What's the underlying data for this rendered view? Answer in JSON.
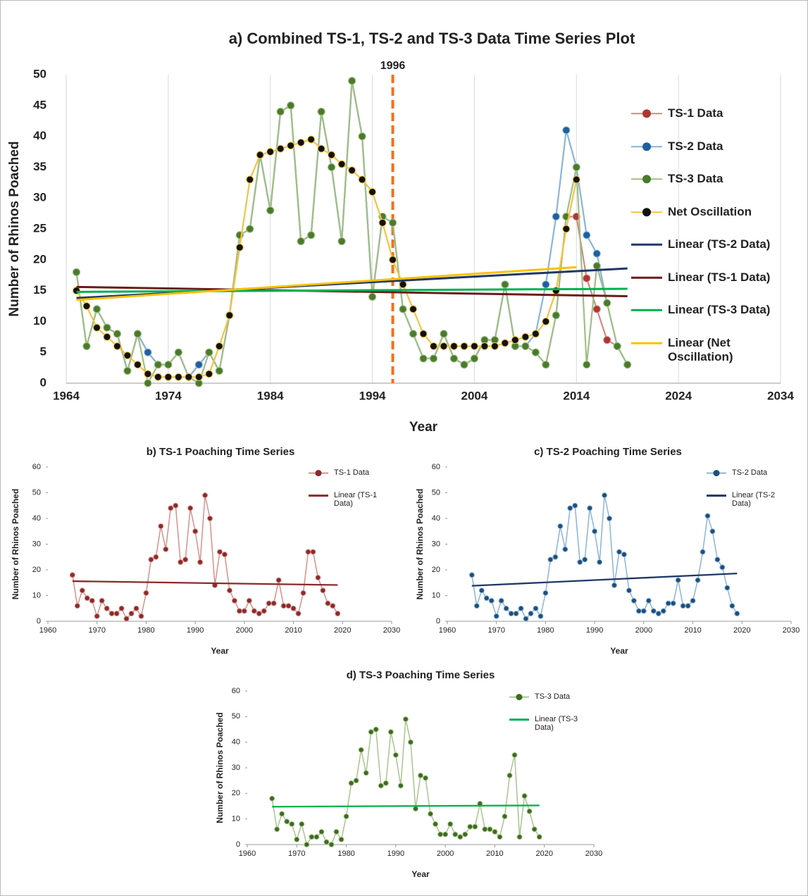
{
  "chart_data": [
    {
      "type": "line",
      "title": "a) Combined TS-1, TS-2 and TS-3 Data Time Series Plot",
      "x_label": "Year",
      "y_label": "Number of Rhinos Poached",
      "x": [
        1965,
        1966,
        1967,
        1968,
        1969,
        1970,
        1971,
        1972,
        1973,
        1974,
        1975,
        1976,
        1977,
        1978,
        1979,
        1980,
        1981,
        1982,
        1983,
        1984,
        1985,
        1986,
        1987,
        1988,
        1989,
        1990,
        1991,
        1992,
        1993,
        1994,
        1995,
        1996,
        1997,
        1998,
        1999,
        2000,
        2001,
        2002,
        2003,
        2004,
        2005,
        2006,
        2007,
        2008,
        2009,
        2010,
        2011,
        2012,
        2013,
        2014,
        2015,
        2016,
        2017,
        2018,
        2019
      ],
      "xlim": [
        1964,
        2034
      ],
      "xticks": [
        1964,
        1974,
        1984,
        1994,
        2004,
        2014,
        2024,
        2034
      ],
      "ylim": [
        0,
        50
      ],
      "yticks": [
        0,
        5,
        10,
        15,
        20,
        25,
        30,
        35,
        40,
        45,
        50
      ],
      "grid": true,
      "vline": 1996,
      "series": [
        {
          "name": "TS-1 Data",
          "color": "#b0352f",
          "line_color": "#d08a85",
          "values": [
            18,
            6,
            12,
            9,
            8,
            2,
            8,
            5,
            3,
            3,
            5,
            1,
            3,
            5,
            2,
            11,
            24,
            25,
            37,
            28,
            44,
            45,
            23,
            24,
            44,
            35,
            23,
            49,
            40,
            14,
            27,
            26,
            12,
            8,
            4,
            4,
            8,
            4,
            3,
            4,
            7,
            7,
            16,
            6,
            6,
            5,
            3,
            11,
            27,
            27,
            17,
            12,
            7,
            6,
            3
          ]
        },
        {
          "name": "TS-2 Data",
          "color": "#1f5f9e",
          "line_color": "#8ab4d9",
          "values": [
            18,
            6,
            12,
            9,
            8,
            2,
            8,
            5,
            3,
            3,
            5,
            1,
            3,
            5,
            2,
            11,
            24,
            25,
            37,
            28,
            44,
            45,
            23,
            24,
            44,
            35,
            23,
            49,
            40,
            14,
            27,
            26,
            12,
            8,
            4,
            4,
            8,
            4,
            3,
            4,
            7,
            7,
            16,
            6,
            6,
            8,
            16,
            27,
            41,
            35,
            24,
            21,
            13,
            6,
            3
          ]
        },
        {
          "name": "TS-3 Data",
          "color": "#4a7a2a",
          "line_color": "#9fbf86",
          "values": [
            18,
            6,
            12,
            9,
            8,
            2,
            8,
            0,
            3,
            3,
            5,
            1,
            0,
            5,
            2,
            11,
            24,
            25,
            37,
            28,
            44,
            45,
            23,
            24,
            44,
            35,
            23,
            49,
            40,
            14,
            27,
            26,
            12,
            8,
            4,
            4,
            8,
            4,
            3,
            4,
            7,
            7,
            16,
            6,
            6,
            5,
            3,
            11,
            27,
            35,
            3,
            19,
            13,
            6,
            3
          ]
        },
        {
          "name": "Net Oscillation",
          "color": "#111111",
          "line_color": "#f5c242",
          "values": [
            15,
            12.5,
            9,
            7.5,
            6,
            4.5,
            3,
            1.5,
            1,
            1,
            1,
            1,
            1,
            1.5,
            6,
            11,
            22,
            33,
            37,
            37.5,
            38,
            38.5,
            39,
            39.5,
            38,
            37,
            35.5,
            34.5,
            33,
            31,
            26,
            20,
            16,
            12,
            8,
            6,
            6,
            6,
            6,
            6,
            6,
            6,
            6.5,
            7,
            7.5,
            8,
            10,
            15,
            25,
            33,
            null,
            null,
            null,
            null,
            null
          ]
        },
        {
          "name": "Linear (TS-2 Data)",
          "line_color": "#1f3864",
          "x": [
            1965,
            2019
          ],
          "values": [
            13.8,
            18.6
          ]
        },
        {
          "name": "Linear (TS-1 Data)",
          "line_color": "#6b1b1b",
          "x": [
            1965,
            2019
          ],
          "values": [
            15.6,
            14.1
          ]
        },
        {
          "name": "Linear (TS-3 Data)",
          "line_color": "#00b050",
          "x": [
            1965,
            2019
          ],
          "values": [
            14.8,
            15.3
          ]
        },
        {
          "name": "Linear (Net Oscillation)",
          "line_color": "#ffc000",
          "x": [
            1965,
            2014
          ],
          "values": [
            13.5,
            18.8
          ]
        }
      ]
    },
    {
      "type": "line",
      "title": "b) TS-1 Poaching Time Series",
      "x_label": "Year",
      "y_label": "Number of Rhinos Poached",
      "x": [
        1965,
        1966,
        1967,
        1968,
        1969,
        1970,
        1971,
        1972,
        1973,
        1974,
        1975,
        1976,
        1977,
        1978,
        1979,
        1980,
        1981,
        1982,
        1983,
        1984,
        1985,
        1986,
        1987,
        1988,
        1989,
        1990,
        1991,
        1992,
        1993,
        1994,
        1995,
        1996,
        1997,
        1998,
        1999,
        2000,
        2001,
        2002,
        2003,
        2004,
        2005,
        2006,
        2007,
        2008,
        2009,
        2010,
        2011,
        2012,
        2013,
        2014,
        2015,
        2016,
        2017,
        2018,
        2019
      ],
      "xlim": [
        1960,
        2030
      ],
      "xticks": [
        1960,
        1970,
        1980,
        1990,
        2000,
        2010,
        2020,
        2030
      ],
      "ylim": [
        0,
        60
      ],
      "yticks": [
        0,
        10,
        20,
        30,
        40,
        50,
        60
      ],
      "grid": false,
      "series": [
        {
          "name": "TS-1 Data",
          "color": "#8b2a2a",
          "line_color": "#d4918c",
          "values": [
            18,
            6,
            12,
            9,
            8,
            2,
            8,
            5,
            3,
            3,
            5,
            1,
            3,
            5,
            2,
            11,
            24,
            25,
            37,
            28,
            44,
            45,
            23,
            24,
            44,
            35,
            23,
            49,
            40,
            14,
            27,
            26,
            12,
            8,
            4,
            4,
            8,
            4,
            3,
            4,
            7,
            7,
            16,
            6,
            6,
            5,
            3,
            11,
            27,
            27,
            17,
            12,
            7,
            6,
            3
          ]
        },
        {
          "name": "Linear (TS-1 Data)",
          "line_color": "#8b2a2a",
          "x": [
            1965,
            2019
          ],
          "values": [
            15.6,
            14.1
          ]
        }
      ]
    },
    {
      "type": "line",
      "title": "c) TS-2 Poaching Time Series",
      "x_label": "Year",
      "y_label": "Number of Rhinos Poached",
      "x": [
        1965,
        1966,
        1967,
        1968,
        1969,
        1970,
        1971,
        1972,
        1973,
        1974,
        1975,
        1976,
        1977,
        1978,
        1979,
        1980,
        1981,
        1982,
        1983,
        1984,
        1985,
        1986,
        1987,
        1988,
        1989,
        1990,
        1991,
        1992,
        1993,
        1994,
        1995,
        1996,
        1997,
        1998,
        1999,
        2000,
        2001,
        2002,
        2003,
        2004,
        2005,
        2006,
        2007,
        2008,
        2009,
        2010,
        2011,
        2012,
        2013,
        2014,
        2015,
        2016,
        2017,
        2018,
        2019
      ],
      "xlim": [
        1960,
        2030
      ],
      "xticks": [
        1960,
        1970,
        1980,
        1990,
        2000,
        2010,
        2020,
        2030
      ],
      "ylim": [
        0,
        60
      ],
      "yticks": [
        0,
        10,
        20,
        30,
        40,
        50,
        60
      ],
      "grid": false,
      "series": [
        {
          "name": "TS-2 Data",
          "color": "#1f4e79",
          "line_color": "#8ab4d9",
          "values": [
            18,
            6,
            12,
            9,
            8,
            2,
            8,
            5,
            3,
            3,
            5,
            1,
            3,
            5,
            2,
            11,
            24,
            25,
            37,
            28,
            44,
            45,
            23,
            24,
            44,
            35,
            23,
            49,
            40,
            14,
            27,
            26,
            12,
            8,
            4,
            4,
            8,
            4,
            3,
            4,
            7,
            7,
            16,
            6,
            6,
            8,
            16,
            27,
            41,
            35,
            24,
            21,
            13,
            6,
            3
          ]
        },
        {
          "name": "Linear (TS-2 Data)",
          "line_color": "#1f3864",
          "x": [
            1965,
            2019
          ],
          "values": [
            13.8,
            18.6
          ]
        }
      ]
    },
    {
      "type": "line",
      "title": "d) TS-3 Poaching Time Series",
      "x_label": "Year",
      "y_label": "Number of Rhinos Poached",
      "x": [
        1965,
        1966,
        1967,
        1968,
        1969,
        1970,
        1971,
        1972,
        1973,
        1974,
        1975,
        1976,
        1977,
        1978,
        1979,
        1980,
        1981,
        1982,
        1983,
        1984,
        1985,
        1986,
        1987,
        1988,
        1989,
        1990,
        1991,
        1992,
        1993,
        1994,
        1995,
        1996,
        1997,
        1998,
        1999,
        2000,
        2001,
        2002,
        2003,
        2004,
        2005,
        2006,
        2007,
        2008,
        2009,
        2010,
        2011,
        2012,
        2013,
        2014,
        2015,
        2016,
        2017,
        2018,
        2019
      ],
      "xlim": [
        1960,
        2030
      ],
      "xticks": [
        1960,
        1970,
        1980,
        1990,
        2000,
        2010,
        2020,
        2030
      ],
      "ylim": [
        0,
        60
      ],
      "yticks": [
        0,
        10,
        20,
        30,
        40,
        50,
        60
      ],
      "grid": false,
      "series": [
        {
          "name": "TS-3 Data",
          "color": "#3d6b1f",
          "line_color": "#a9c48f",
          "values": [
            18,
            6,
            12,
            9,
            8,
            2,
            8,
            0,
            3,
            3,
            5,
            1,
            0,
            5,
            2,
            11,
            24,
            25,
            37,
            28,
            44,
            45,
            23,
            24,
            44,
            35,
            23,
            49,
            40,
            14,
            27,
            26,
            12,
            8,
            4,
            4,
            8,
            4,
            3,
            4,
            7,
            7,
            16,
            6,
            6,
            5,
            3,
            11,
            27,
            35,
            3,
            19,
            13,
            6,
            3
          ]
        },
        {
          "name": "Linear (TS-3 Data)",
          "line_color": "#00b050",
          "x": [
            1965,
            2019
          ],
          "values": [
            14.8,
            15.3
          ]
        }
      ]
    }
  ]
}
